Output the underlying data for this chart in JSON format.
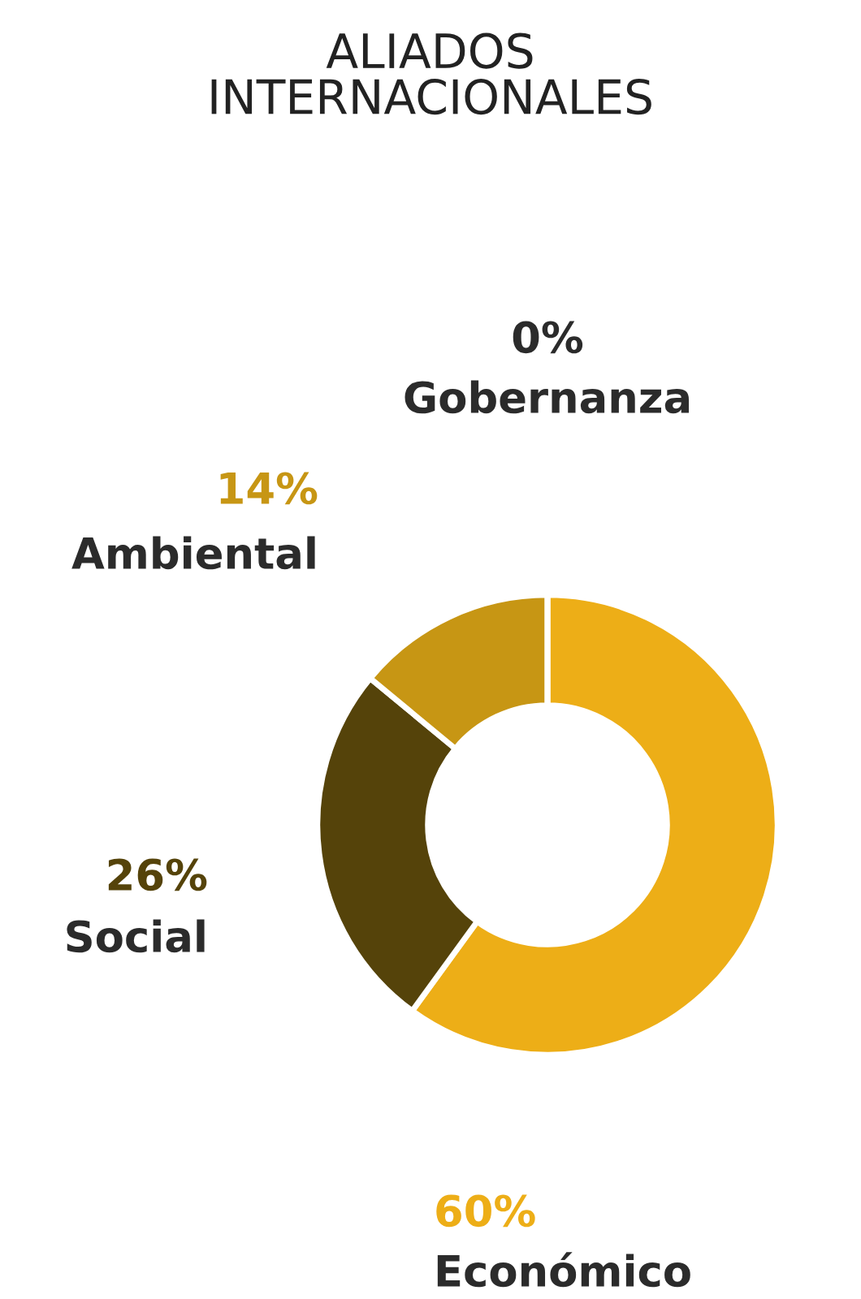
{
  "chart_data": {
    "type": "donut",
    "title": "ALIADOS\nINTERNACIONALES",
    "categories": [
      "Económico",
      "Social",
      "Ambiental",
      "Gobernanza"
    ],
    "values": [
      60,
      26,
      14,
      0
    ],
    "colors": [
      "#edae17",
      "#55430a",
      "#c79614",
      "#2b2b2b"
    ],
    "value_labels": [
      "60%",
      "26%",
      "14%",
      "0%"
    ]
  }
}
